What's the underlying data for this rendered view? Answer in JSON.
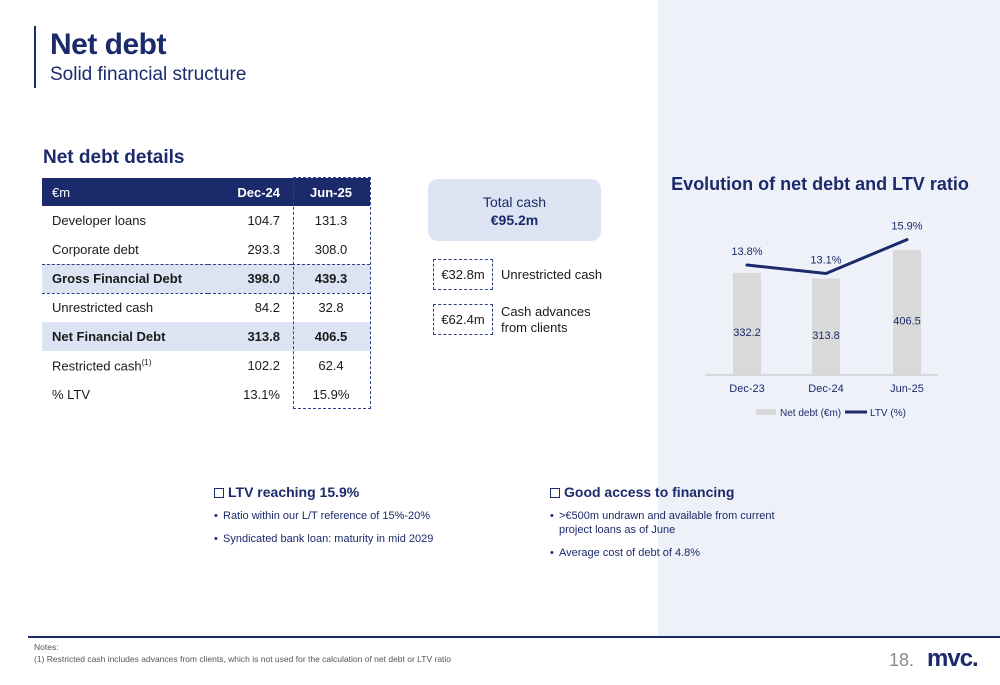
{
  "header": {
    "title": "Net debt",
    "subtitle": "Solid financial structure"
  },
  "details": {
    "title": "Net debt details",
    "columns": [
      "€m",
      "Dec-24",
      "Jun-25"
    ],
    "rows": [
      {
        "label": "Developer loans",
        "dec": "104.7",
        "jun": "131.3"
      },
      {
        "label": "Corporate debt",
        "dec": "293.3",
        "jun": "308.0"
      },
      {
        "label": "Gross Financial Debt",
        "dec": "398.0",
        "jun": "439.3"
      },
      {
        "label": "Unrestricted cash",
        "dec": "84.2",
        "jun": "32.8"
      },
      {
        "label": "Net Financial Debt",
        "dec": "313.8",
        "jun": "406.5"
      },
      {
        "label": "Restricted cash",
        "sup": "(1)",
        "dec": "102.2",
        "jun": "62.4"
      },
      {
        "label": "% LTV",
        "dec": "13.1%",
        "jun": "15.9%"
      }
    ]
  },
  "cash": {
    "total_label": "Total cash",
    "total_value": "€95.2m",
    "items": [
      {
        "value": "€32.8m",
        "desc": "Unrestricted cash"
      },
      {
        "value": "€62.4m",
        "desc_line1": "Cash advances",
        "desc_line2": "from clients"
      }
    ]
  },
  "chart_title": "Evolution of net debt and LTV ratio",
  "chart_data": {
    "type": "bar",
    "categories": [
      "Dec-23",
      "Dec-24",
      "Jun-25"
    ],
    "series": [
      {
        "name": "Net debt (€m)",
        "type": "bar",
        "values": [
          332.2,
          313.8,
          406.5
        ],
        "labels": [
          "332.2",
          "313.8",
          "406.5"
        ],
        "color": "#d9d9d9"
      },
      {
        "name": "LTV (%)",
        "type": "line",
        "values": [
          13.8,
          13.1,
          15.9
        ],
        "labels": [
          "13.8%",
          "13.1%",
          "15.9%"
        ],
        "color": "#1b2a6b"
      }
    ],
    "legend": "bottom"
  },
  "points": {
    "ltv": {
      "title": "LTV reaching 15.9%",
      "items": [
        "Ratio within our L/T reference of 15%-20%",
        "Syndicated bank loan: maturity in mid 2029"
      ]
    },
    "financing": {
      "title": "Good access to financing",
      "item1_line1": ">€500m undrawn and available from current",
      "item1_line2": "project loans as of June",
      "item2": "Average cost of debt of 4.8%"
    }
  },
  "footer": {
    "notes_title": "Notes:",
    "note1": "(1) Restricted cash includes advances from clients, which is not used for the calculation of net debt or LTV ratio",
    "page": "18.",
    "logo": "mvc."
  },
  "colors": {
    "brand": "#1b2a6b",
    "highlight": "#dce3f2",
    "panel": "#eef2f8",
    "bar": "#d9d9d9"
  }
}
